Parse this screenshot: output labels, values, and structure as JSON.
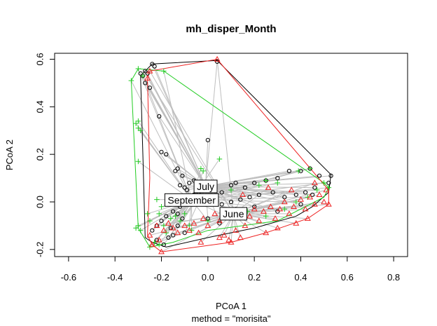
{
  "chart_data": {
    "type": "scatter",
    "title": "mh_disper_Month",
    "xlabel": "PCoA 1",
    "subtitle": "method = \"morisita\"",
    "ylabel": "PCoA 2",
    "xlim": [
      -0.66,
      0.86
    ],
    "ylim": [
      -0.23,
      0.625
    ],
    "x_ticks": [
      -0.6,
      -0.4,
      -0.2,
      0.0,
      0.2,
      0.4,
      0.6,
      0.8
    ],
    "x_tick_labels": [
      "-0.6",
      "-0.4",
      "-0.2",
      "0.0",
      "0.2",
      "0.4",
      "0.6",
      "0.8"
    ],
    "y_ticks": [
      -0.2,
      0.0,
      0.2,
      0.4,
      0.6
    ],
    "y_tick_labels": [
      "-0.2",
      "0.0",
      "0.2",
      "0.4",
      "0.6"
    ],
    "spoke_color": "#bebebe",
    "series": [
      {
        "name": "July",
        "marker": "circle",
        "color": "#000000",
        "centroid": [
          -0.01,
          0.065
        ],
        "hull": [
          [
            -0.29,
            0.53
          ],
          [
            -0.24,
            0.58
          ],
          [
            0.04,
            0.595
          ],
          [
            0.53,
            0.115
          ],
          [
            0.52,
            0.04
          ],
          [
            0.45,
            -0.02
          ],
          [
            0.38,
            -0.06
          ],
          [
            0.2,
            -0.11
          ],
          [
            0.0,
            -0.15
          ],
          [
            -0.18,
            -0.19
          ],
          [
            -0.24,
            -0.17
          ],
          [
            -0.27,
            -0.15
          ],
          [
            -0.28,
            0.2
          ]
        ],
        "points": [
          [
            -0.28,
            0.53
          ],
          [
            -0.27,
            0.55
          ],
          [
            -0.26,
            0.54
          ],
          [
            -0.29,
            0.54
          ],
          [
            -0.24,
            0.58
          ],
          [
            -0.23,
            0.57
          ],
          [
            -0.27,
            0.5
          ],
          [
            -0.25,
            0.48
          ],
          [
            -0.21,
            0.36
          ],
          [
            -0.2,
            0.21
          ],
          [
            -0.18,
            0.2
          ],
          [
            -0.13,
            0.14
          ],
          [
            -0.14,
            0.13
          ],
          [
            -0.11,
            0.11
          ],
          [
            -0.1,
            0.06
          ],
          [
            -0.12,
            0.07
          ],
          [
            -0.09,
            0.05
          ],
          [
            -0.08,
            0.08
          ],
          [
            -0.06,
            0.09
          ],
          [
            -0.05,
            0.06
          ],
          [
            -0.04,
            0.04
          ],
          [
            -0.06,
            0.03
          ],
          [
            0.0,
            0.26
          ],
          [
            0.04,
            0.59
          ],
          [
            0.03,
            0.06
          ],
          [
            0.06,
            0.04
          ],
          [
            0.1,
            0.07
          ],
          [
            0.12,
            0.08
          ],
          [
            0.16,
            0.06
          ],
          [
            0.2,
            0.08
          ],
          [
            0.25,
            0.09
          ],
          [
            0.3,
            0.1
          ],
          [
            0.35,
            0.13
          ],
          [
            0.4,
            0.13
          ],
          [
            0.44,
            0.14
          ],
          [
            0.48,
            0.11
          ],
          [
            0.53,
            0.11
          ],
          [
            0.52,
            0.08
          ],
          [
            0.46,
            0.06
          ],
          [
            0.42,
            0.04
          ],
          [
            0.38,
            0.03
          ],
          [
            0.33,
            0.02
          ],
          [
            0.28,
            0.04
          ],
          [
            0.22,
            0.03
          ],
          [
            0.18,
            0.02
          ],
          [
            0.14,
            0.01
          ],
          [
            0.1,
            0.0
          ],
          [
            0.06,
            -0.01
          ],
          [
            0.02,
            0.02
          ],
          [
            -0.03,
            0.01
          ],
          [
            -0.07,
            0.0
          ],
          [
            -0.12,
            -0.02
          ],
          [
            -0.15,
            -0.04
          ],
          [
            -0.18,
            -0.06
          ],
          [
            -0.2,
            -0.08
          ],
          [
            -0.22,
            -0.1
          ],
          [
            -0.24,
            -0.12
          ],
          [
            -0.22,
            -0.16
          ],
          [
            -0.19,
            -0.18
          ],
          [
            -0.15,
            -0.14
          ],
          [
            -0.13,
            -0.1
          ],
          [
            -0.11,
            -0.07
          ],
          [
            -0.13,
            -0.05
          ],
          [
            -0.16,
            -0.11
          ],
          [
            -0.17,
            -0.15
          ],
          [
            -0.1,
            -0.13
          ],
          [
            0.0,
            -0.07
          ],
          [
            0.05,
            -0.09
          ],
          [
            0.12,
            -0.03
          ],
          [
            0.2,
            -0.02
          ],
          [
            0.3,
            -0.04
          ],
          [
            0.4,
            -0.01
          ],
          [
            0.45,
            0.03
          ]
        ]
      },
      {
        "name": "September",
        "marker": "plus",
        "color": "#22cc22",
        "centroid": [
          -0.07,
          0.008
        ],
        "hull": [
          [
            -0.33,
            0.51
          ],
          [
            -0.3,
            0.56
          ],
          [
            -0.19,
            0.55
          ],
          [
            0.5,
            0.08
          ],
          [
            0.52,
            0.06
          ],
          [
            0.5,
            0.02
          ],
          [
            0.3,
            -0.08
          ],
          [
            0.0,
            -0.12
          ],
          [
            -0.15,
            -0.17
          ],
          [
            -0.25,
            -0.19
          ],
          [
            -0.3,
            -0.11
          ]
        ],
        "points": [
          [
            -0.33,
            0.51
          ],
          [
            -0.3,
            0.56
          ],
          [
            -0.28,
            0.53
          ],
          [
            -0.19,
            0.55
          ],
          [
            -0.3,
            0.34
          ],
          [
            -0.31,
            0.33
          ],
          [
            -0.3,
            0.31
          ],
          [
            -0.29,
            0.3
          ],
          [
            -0.3,
            0.17
          ],
          [
            -0.3,
            -0.1
          ],
          [
            -0.31,
            -0.11
          ],
          [
            -0.29,
            -0.12
          ],
          [
            -0.26,
            -0.05
          ],
          [
            -0.25,
            -0.08
          ],
          [
            -0.22,
            0.01
          ],
          [
            -0.2,
            -0.02
          ],
          [
            -0.21,
            -0.05
          ],
          [
            -0.19,
            -0.1
          ],
          [
            -0.18,
            -0.13
          ],
          [
            -0.23,
            -0.17
          ],
          [
            -0.21,
            -0.18
          ],
          [
            -0.25,
            -0.19
          ],
          [
            -0.16,
            -0.07
          ],
          [
            -0.14,
            -0.06
          ],
          [
            -0.12,
            -0.08
          ],
          [
            -0.1,
            -0.05
          ],
          [
            -0.08,
            -0.1
          ],
          [
            -0.05,
            0.0
          ],
          [
            -0.03,
            0.14
          ],
          [
            -0.02,
            0.13
          ],
          [
            0.05,
            0.18
          ],
          [
            0.1,
            0.05
          ],
          [
            0.22,
            0.07
          ],
          [
            0.25,
            0.09
          ],
          [
            0.3,
            0.08
          ],
          [
            0.39,
            0.13
          ],
          [
            0.44,
            0.14
          ],
          [
            0.5,
            0.08
          ],
          [
            0.52,
            0.06
          ],
          [
            0.47,
            0.05
          ],
          [
            0.43,
            0.02
          ],
          [
            0.38,
            0.0
          ],
          [
            0.33,
            -0.03
          ],
          [
            0.25,
            -0.06
          ],
          [
            0.17,
            -0.04
          ],
          [
            0.08,
            -0.06
          ],
          [
            0.0,
            -0.08
          ],
          [
            -0.07,
            -0.12
          ]
        ]
      },
      {
        "name": "June",
        "marker": "triangle",
        "color": "#ee2222",
        "centroid": [
          0.11,
          -0.05
        ],
        "hull": [
          [
            -0.26,
            0.52
          ],
          [
            -0.25,
            0.55
          ],
          [
            0.04,
            0.6
          ],
          [
            0.52,
            0.05
          ],
          [
            0.52,
            -0.01
          ],
          [
            0.43,
            -0.07
          ],
          [
            0.25,
            -0.13
          ],
          [
            0.1,
            -0.17
          ],
          [
            -0.2,
            -0.21
          ],
          [
            -0.24,
            -0.18
          ],
          [
            -0.26,
            -0.14
          ],
          [
            -0.25,
            0.1
          ]
        ],
        "points": [
          [
            -0.26,
            0.52
          ],
          [
            -0.25,
            0.55
          ],
          [
            0.04,
            0.6
          ],
          [
            -0.25,
            -0.14
          ],
          [
            -0.24,
            -0.18
          ],
          [
            -0.2,
            -0.21
          ],
          [
            -0.21,
            -0.16
          ],
          [
            -0.22,
            -0.1
          ],
          [
            -0.19,
            -0.12
          ],
          [
            -0.17,
            -0.09
          ],
          [
            -0.15,
            -0.11
          ],
          [
            -0.13,
            -0.13
          ],
          [
            -0.1,
            -0.1
          ],
          [
            -0.08,
            -0.12
          ],
          [
            -0.06,
            -0.09
          ],
          [
            -0.04,
            -0.13
          ],
          [
            -0.02,
            -0.07
          ],
          [
            0.0,
            -0.1
          ],
          [
            0.03,
            -0.05
          ],
          [
            0.05,
            -0.08
          ],
          [
            0.07,
            -0.14
          ],
          [
            0.09,
            -0.16
          ],
          [
            0.12,
            -0.12
          ],
          [
            0.14,
            -0.15
          ],
          [
            0.16,
            -0.1
          ],
          [
            0.18,
            -0.06
          ],
          [
            0.2,
            -0.03
          ],
          [
            0.22,
            -0.08
          ],
          [
            0.24,
            -0.04
          ],
          [
            0.27,
            -0.02
          ],
          [
            0.29,
            -0.07
          ],
          [
            0.31,
            -0.03
          ],
          [
            0.33,
            0.0
          ],
          [
            0.35,
            -0.05
          ],
          [
            0.37,
            -0.02
          ],
          [
            0.4,
            0.01
          ],
          [
            0.42,
            -0.03
          ],
          [
            0.44,
            0.02
          ],
          [
            0.46,
            -0.01
          ],
          [
            0.48,
            0.03
          ],
          [
            0.5,
            0.0
          ],
          [
            0.52,
            -0.01
          ],
          [
            0.51,
            0.05
          ],
          [
            0.43,
            -0.07
          ],
          [
            0.38,
            -0.09
          ],
          [
            0.3,
            -0.11
          ],
          [
            0.25,
            -0.13
          ],
          [
            0.1,
            -0.17
          ],
          [
            0.05,
            -0.15
          ],
          [
            -0.03,
            -0.17
          ],
          [
            0.15,
            0.03
          ],
          [
            0.26,
            0.06
          ],
          [
            0.36,
            0.05
          ],
          [
            0.46,
            0.08
          ]
        ]
      }
    ]
  }
}
